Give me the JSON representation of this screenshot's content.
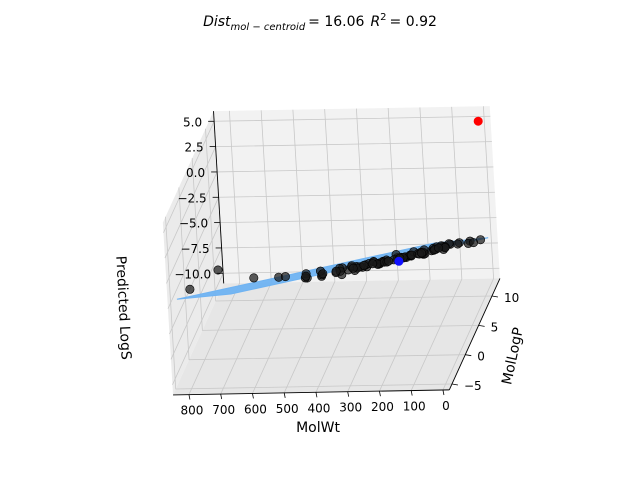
{
  "chart_data": {
    "type": "scatter",
    "title": {
      "dist_label": "Dist",
      "dist_sub": "mol − centroid",
      "dist_value": "= 16.06",
      "r2_label": "R",
      "r2_sup": "2",
      "r2_value": "= 0.92"
    },
    "xlabel": "MolWt",
    "ylabel": "MolLogP",
    "zlabel": "Predicted LogS",
    "xlim": [
      -20,
      850
    ],
    "ylim": [
      -6,
      13
    ],
    "zlim": [
      -11,
      6
    ],
    "xticks": [
      "800",
      "700",
      "600",
      "500",
      "400",
      "300",
      "200",
      "100",
      "0"
    ],
    "xtick_values": [
      800,
      700,
      600,
      500,
      400,
      300,
      200,
      100,
      0
    ],
    "yticks": [
      "10",
      "5",
      "0",
      "−5"
    ],
    "ytick_values": [
      10,
      5,
      0,
      -5
    ],
    "zticks": [
      "5.0",
      "2.5",
      "0.0",
      "−2.5",
      "−5.0",
      "−7.5",
      "−10.0"
    ],
    "ztick_values": [
      5.0,
      2.5,
      0.0,
      -2.5,
      -5.0,
      -7.5,
      -10.0
    ],
    "grid": true,
    "plane": {
      "z_intercept": 0.2,
      "coef_molwt": -0.0062,
      "coef_logp": -0.55,
      "color": "#6fb3f2"
    },
    "series": [
      {
        "color": "#1a1a1a",
        "points": [
          [
            820,
            -1.5,
            -3.2
          ],
          [
            780,
            4.0,
            -4.5
          ],
          [
            650,
            2.0,
            -4.2
          ],
          [
            600,
            5.0,
            -5.9
          ],
          [
            560,
            3.0,
            -4.7
          ],
          [
            520,
            6.0,
            -6.6
          ],
          [
            480,
            1.5,
            -3.6
          ],
          [
            460,
            4.5,
            -5.6
          ],
          [
            440,
            2.5,
            -4.3
          ],
          [
            420,
            7.0,
            -6.9
          ],
          [
            400,
            3.0,
            -4.4
          ],
          [
            380,
            5.0,
            -5.3
          ],
          [
            360,
            1.0,
            -2.8
          ],
          [
            350,
            4.0,
            -4.8
          ],
          [
            340,
            2.0,
            -3.3
          ],
          [
            330,
            6.0,
            -5.6
          ],
          [
            320,
            3.5,
            -4.2
          ],
          [
            310,
            0.5,
            -2.4
          ],
          [
            300,
            2.5,
            -3.4
          ],
          [
            290,
            5.5,
            -5.1
          ],
          [
            280,
            1.5,
            -2.7
          ],
          [
            270,
            4.0,
            -4.1
          ],
          [
            260,
            3.0,
            -3.6
          ],
          [
            250,
            0.0,
            -1.7
          ],
          [
            240,
            2.0,
            -2.8
          ],
          [
            230,
            6.5,
            -5.2
          ],
          [
            220,
            1.0,
            -2.1
          ],
          [
            210,
            3.5,
            -3.5
          ],
          [
            200,
            2.5,
            -2.9
          ],
          [
            190,
            4.5,
            -3.9
          ],
          [
            180,
            0.5,
            -1.6
          ],
          [
            170,
            2.0,
            -2.4
          ],
          [
            160,
            3.0,
            -2.9
          ],
          [
            150,
            1.5,
            -2.0
          ],
          [
            140,
            5.0,
            -3.9
          ],
          [
            130,
            -0.5,
            -0.8
          ],
          [
            120,
            2.5,
            -2.4
          ],
          [
            110,
            1.0,
            -1.4
          ],
          [
            100,
            3.5,
            -2.7
          ],
          [
            90,
            0.0,
            -0.6
          ],
          [
            80,
            2.0,
            -1.6
          ],
          [
            70,
            4.0,
            -2.6
          ],
          [
            60,
            1.0,
            -0.9
          ],
          [
            50,
            2.5,
            -1.7
          ],
          [
            40,
            0.5,
            -0.5
          ],
          [
            35,
            3.0,
            -1.8
          ],
          [
            30,
            5.5,
            -3.1
          ],
          [
            25,
            1.5,
            -0.9
          ],
          [
            20,
            8.0,
            -4.4
          ],
          [
            15,
            11.0,
            -6.0
          ],
          [
            380,
            9.0,
            -7.3
          ],
          [
            300,
            8.0,
            -6.3
          ],
          [
            450,
            -2.0,
            -2.0
          ],
          [
            350,
            -1.0,
            -1.7
          ],
          [
            250,
            7.5,
            -5.3
          ],
          [
            180,
            6.0,
            -4.2
          ],
          [
            420,
            0.0,
            -2.5
          ],
          [
            330,
            1.0,
            -2.6
          ],
          [
            270,
            2.0,
            -2.8
          ],
          [
            230,
            4.5,
            -4.1
          ],
          [
            210,
            5.5,
            -4.5
          ],
          [
            190,
            2.8,
            -2.9
          ],
          [
            170,
            4.2,
            -3.5
          ],
          [
            150,
            6.5,
            -4.7
          ],
          [
            130,
            3.8,
            -3.0
          ],
          [
            110,
            6.0,
            -4.0
          ],
          [
            95,
            7.0,
            -4.6
          ],
          [
            75,
            5.5,
            -3.5
          ],
          [
            60,
            3.8,
            -2.6
          ],
          [
            45,
            6.5,
            -3.8
          ],
          [
            35,
            9.0,
            -5.2
          ],
          [
            28,
            10.0,
            -5.7
          ],
          [
            500,
            3.5,
            -5.0
          ],
          [
            470,
            6.0,
            -6.2
          ],
          [
            410,
            5.5,
            -5.7
          ],
          [
            390,
            2.0,
            -3.7
          ],
          [
            365,
            6.5,
            -6.0
          ],
          [
            345,
            3.0,
            -4.0
          ],
          [
            325,
            4.5,
            -4.6
          ],
          [
            305,
            6.8,
            -5.8
          ],
          [
            285,
            3.2,
            -3.7
          ],
          [
            265,
            5.0,
            -4.6
          ],
          [
            245,
            3.8,
            -3.9
          ],
          [
            225,
            2.2,
            -2.9
          ],
          [
            205,
            5.0,
            -4.2
          ],
          [
            185,
            1.8,
            -2.4
          ],
          [
            165,
            5.8,
            -4.3
          ],
          [
            145,
            4.2,
            -3.4
          ],
          [
            125,
            2.8,
            -2.5
          ],
          [
            105,
            4.8,
            -3.4
          ],
          [
            85,
            3.0,
            -2.3
          ],
          [
            65,
            2.2,
            -1.7
          ]
        ]
      },
      {
        "color": "#1010ff",
        "points": [
          [
            200,
            3.0,
            -3.4
          ]
        ]
      },
      {
        "color": "#ff0000",
        "points": [
          [
            5,
            11.5,
            5.4
          ]
        ]
      }
    ]
  }
}
